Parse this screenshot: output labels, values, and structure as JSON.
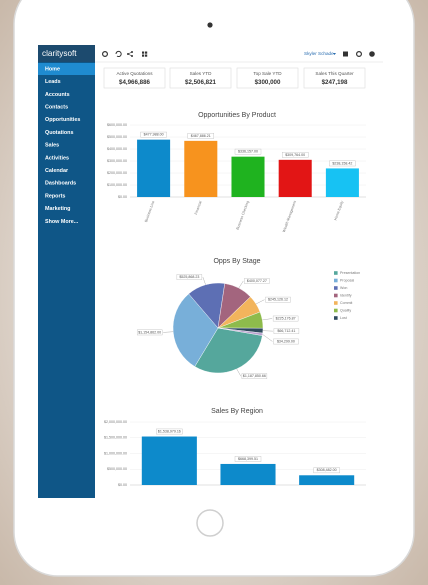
{
  "sidebar": {
    "logo": "claritysoft",
    "menu": [
      "Home",
      "Leads",
      "Accounts",
      "Contacts",
      "Opportunities",
      "Quotations",
      "Sales",
      "Activities",
      "Calendar",
      "Dashboards",
      "Reports",
      "Marketing",
      "Show More..."
    ]
  },
  "topbar": {
    "user": "Skyler Schade"
  },
  "kpis": [
    {
      "label": "Active Quotations",
      "value": "$4,966,886"
    },
    {
      "label": "Sales YTD",
      "value": "$2,506,821"
    },
    {
      "label": "Top Sale YTD",
      "value": "$300,000"
    },
    {
      "label": "Sales This Quarter",
      "value": "$247,198"
    }
  ],
  "chart_data": [
    {
      "type": "bar",
      "title": "Opportunities By Product",
      "categories": [
        "Business Line",
        "Financial",
        "Business Checking",
        "Wealth Management",
        "Home Equity"
      ],
      "values": [
        477988.0,
        467886.21,
        336157.0,
        309764.0,
        238158.42
      ],
      "value_labels": [
        "$477,988.00",
        "$467,886.21",
        "$336,157.00",
        "$309,764.00",
        "$238,158.42"
      ],
      "colors": [
        "#0d8acb",
        "#f7931e",
        "#1fb31f",
        "#e21515",
        "#17c2f3"
      ],
      "ylim": [
        0,
        600000
      ],
      "yticks": [
        {
          "value": 0,
          "label": "$0.00"
        },
        {
          "value": 100000,
          "label": "$100,000.00"
        },
        {
          "value": 200000,
          "label": "$200,000.00"
        },
        {
          "value": 300000,
          "label": "$300,000.00"
        },
        {
          "value": 400000,
          "label": "$400,000.00"
        },
        {
          "value": 500000,
          "label": "$500,000.00"
        },
        {
          "value": 600000,
          "label": "$600,000.00"
        }
      ],
      "grid": true
    },
    {
      "type": "pie",
      "title": "Opps By Stage",
      "categories": [
        "Presentation",
        "Proposal",
        "Won",
        "Identify",
        "Commit",
        "Quality",
        "Lost",
        null
      ],
      "values": [
        1187850.66,
        1154862.0,
        525868.23,
        400077.27,
        245126.12,
        225176.87,
        66712.41,
        34299.0
      ],
      "value_labels": [
        "$1,187,850.66",
        "$1,154,862.00",
        "$525,868.23",
        "$400,077.27",
        "$245,126.12",
        "$225,176.87",
        "$66,712.41",
        "$34,299.00"
      ],
      "colors": [
        "#55a79c",
        "#78afd9",
        "#5d6fb4",
        "#a3657e",
        "#f2b45c",
        "#8ebb4c",
        "#2f4a5e",
        "#b9a1cf"
      ],
      "legend": "right"
    },
    {
      "type": "bar",
      "title": "Sales By Region",
      "categories": [
        null,
        null,
        null
      ],
      "values": [
        1538979.16,
        668399.51,
        308482.0
      ],
      "value_labels": [
        "$1,538,979.16",
        "$668,399.51",
        "$308,482.00"
      ],
      "colors": [
        "#0d8acb",
        "#0d8acb",
        "#0d8acb"
      ],
      "ylim": [
        0,
        2000000
      ],
      "yticks": [
        {
          "value": 0,
          "label": "$0.00"
        },
        {
          "value": 500000,
          "label": "$500,000.00"
        },
        {
          "value": 1000000,
          "label": "$1,000,000.00"
        },
        {
          "value": 1500000,
          "label": "$1,500,000.00"
        },
        {
          "value": 2000000,
          "label": "$2,000,000.00"
        }
      ],
      "grid": true
    }
  ]
}
